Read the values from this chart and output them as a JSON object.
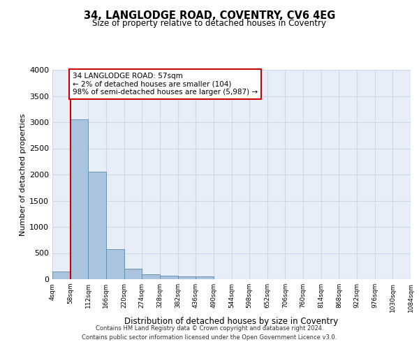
{
  "title1": "34, LANGLODGE ROAD, COVENTRY, CV6 4EG",
  "title2": "Size of property relative to detached houses in Coventry",
  "xlabel": "Distribution of detached houses by size in Coventry",
  "ylabel": "Number of detached properties",
  "bin_labels": [
    "4sqm",
    "58sqm",
    "112sqm",
    "166sqm",
    "220sqm",
    "274sqm",
    "328sqm",
    "382sqm",
    "436sqm",
    "490sqm",
    "544sqm",
    "598sqm",
    "652sqm",
    "706sqm",
    "760sqm",
    "814sqm",
    "868sqm",
    "922sqm",
    "976sqm",
    "1030sqm",
    "1084sqm"
  ],
  "bar_heights": [
    148,
    3060,
    2060,
    570,
    205,
    90,
    65,
    50,
    50,
    0,
    0,
    0,
    0,
    0,
    0,
    0,
    0,
    0,
    0,
    0
  ],
  "bar_color": "#aac4de",
  "bar_edge_color": "#5a8ab0",
  "property_line_x": 1,
  "annotation_text": "34 LANGLODGE ROAD: 57sqm\n← 2% of detached houses are smaller (104)\n98% of semi-detached houses are larger (5,987) →",
  "annotation_box_color": "#ffffff",
  "annotation_box_edge": "#cc0000",
  "red_line_color": "#cc0000",
  "ylim": [
    0,
    4000
  ],
  "yticks": [
    0,
    500,
    1000,
    1500,
    2000,
    2500,
    3000,
    3500,
    4000
  ],
  "grid_color": "#d0d8e8",
  "bg_color": "#e8eef8",
  "footer1": "Contains HM Land Registry data © Crown copyright and database right 2024.",
  "footer2": "Contains public sector information licensed under the Open Government Licence v3.0."
}
